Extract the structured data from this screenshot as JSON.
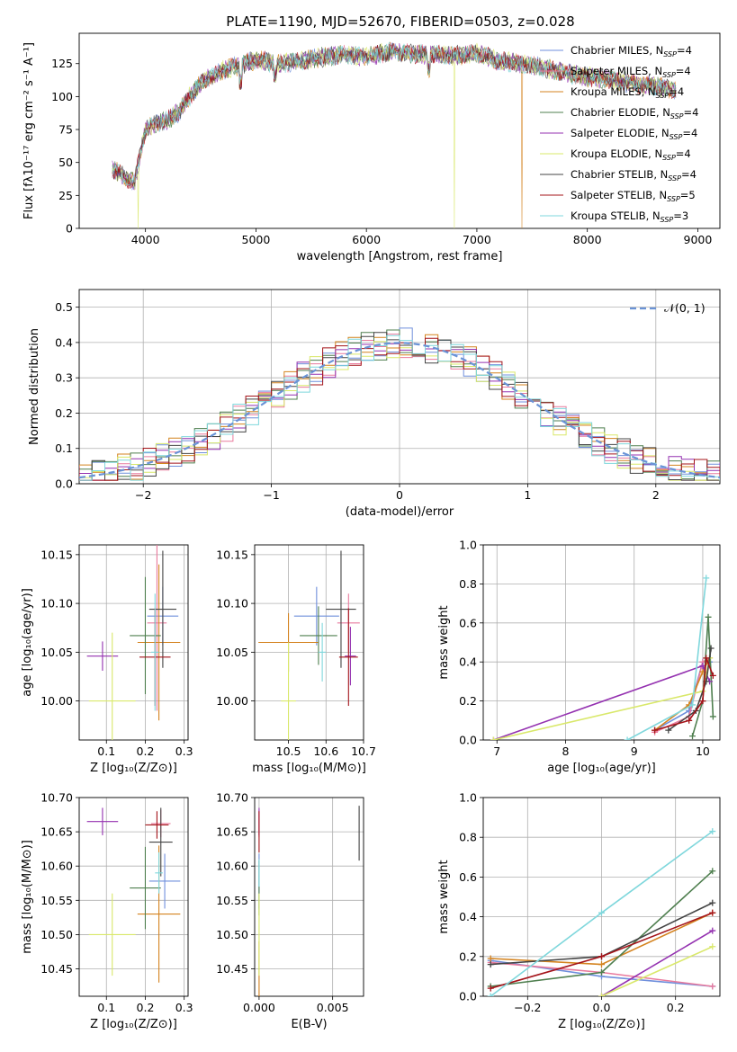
{
  "legend_series": [
    {
      "name": "Chabrier MILES",
      "n": "4",
      "color": "#6f8fdc"
    },
    {
      "name": "Salpeter MILES",
      "n": "4",
      "color": "#e97a9d"
    },
    {
      "name": "Kroupa MILES",
      "n": "4",
      "color": "#d4831f"
    },
    {
      "name": "Chabrier ELODIE",
      "n": "4",
      "color": "#4f7f4f"
    },
    {
      "name": "Salpeter ELODIE",
      "n": "4",
      "color": "#9431b0"
    },
    {
      "name": "Kroupa ELODIE",
      "n": "4",
      "color": "#d9e86a"
    },
    {
      "name": "Chabrier STELIB",
      "n": "4",
      "color": "#444444"
    },
    {
      "name": "Salpeter STELIB",
      "n": "5",
      "color": "#a4141a"
    },
    {
      "name": "Kroupa STELIB",
      "n": "3",
      "color": "#7fd7dc"
    }
  ],
  "nssp_label": "N",
  "nssp_sub": "SSP",
  "chart_data": [
    {
      "id": "spectrum",
      "type": "line",
      "title": "PLATE=1190, MJD=52670, FIBERID=0503, z=0.028",
      "xlabel": "wavelength [Angstrom, rest frame]",
      "ylabel": "Flux [fλ10⁻¹⁷ erg cm⁻² s⁻¹ A⁻¹]",
      "xlim": [
        3400,
        9200
      ],
      "ylim": [
        0,
        148
      ],
      "xticks": [
        4000,
        5000,
        6000,
        7000,
        8000,
        9000
      ],
      "yticks": [
        0,
        25,
        50,
        75,
        100,
        125
      ],
      "spectrum_shape": {
        "x": [
          3700,
          3800,
          3900,
          3950,
          4000,
          4100,
          4200,
          4300,
          4400,
          4500,
          4700,
          4900,
          5000,
          5200,
          5400,
          5600,
          5800,
          6000,
          6200,
          6500,
          6800,
          7000,
          7200,
          7400,
          7600,
          7800,
          8000,
          8200,
          8400,
          8600,
          8800
        ],
        "y": [
          45,
          40,
          35,
          55,
          75,
          80,
          82,
          88,
          100,
          110,
          120,
          125,
          128,
          125,
          127,
          130,
          132,
          130,
          134,
          132,
          131,
          133,
          127,
          125,
          122,
          118,
          115,
          113,
          110,
          108,
          105
        ]
      },
      "absorption_dips": [
        {
          "x": 3935,
          "y": 0
        },
        {
          "x": 6795,
          "y": 0
        },
        {
          "x": 7410,
          "y": 0
        }
      ]
    },
    {
      "id": "residuals",
      "type": "bar",
      "xlabel": "(data-model)/error",
      "ylabel": "Normed distribution",
      "xlim": [
        -2.5,
        2.5
      ],
      "ylim": [
        0,
        0.55
      ],
      "xticks": [
        -2,
        -1,
        0,
        1,
        2
      ],
      "yticks": [
        0.0,
        0.1,
        0.2,
        0.3,
        0.4,
        0.5
      ],
      "legend": "𝒩(0, 1)",
      "gaussian": {
        "mean": 0,
        "sigma": 1
      },
      "bin_width": 0.1
    },
    {
      "id": "age-vs-Z",
      "type": "scatter",
      "xlabel": "Z [log₁₀(Z/Z⊙)]",
      "ylabel": "age  [log₁₀(age/yr)]",
      "xlim": [
        0.03,
        0.31
      ],
      "ylim": [
        9.96,
        10.16
      ],
      "xticks": [
        0.1,
        0.2,
        0.3
      ],
      "yticks": [
        10.0,
        10.05,
        10.1,
        10.15
      ],
      "points": [
        {
          "x": 0.245,
          "y": 10.087,
          "xerr": 0.04,
          "yerr": 0.03,
          "series": 0
        },
        {
          "x": 0.23,
          "y": 10.08,
          "xerr": 0.025,
          "yerr": 0.09,
          "series": 1
        },
        {
          "x": 0.235,
          "y": 10.06,
          "xerr": 0.055,
          "yerr": 0.08,
          "series": 2
        },
        {
          "x": 0.2,
          "y": 10.067,
          "xerr": 0.04,
          "yerr": 0.06,
          "series": 3
        },
        {
          "x": 0.09,
          "y": 10.046,
          "xerr": 0.04,
          "yerr": 0.015,
          "series": 4
        },
        {
          "x": 0.115,
          "y": 10.0,
          "xerr": 0.06,
          "yerr": 0.07,
          "series": 5
        },
        {
          "x": 0.245,
          "y": 10.094,
          "xerr": 0.035,
          "yerr": 0.06,
          "series": 6
        },
        {
          "x": 0.225,
          "y": 10.045,
          "xerr": 0.04,
          "yerr": 0.05,
          "series": 7
        },
        {
          "x": 0.225,
          "y": 10.05,
          "xerr": 0.01,
          "yerr": 0.06,
          "series": 8
        }
      ]
    },
    {
      "id": "age-vs-mass",
      "type": "scatter",
      "xlabel": "mass [log₁₀(M/M⊙)]",
      "xlim": [
        10.41,
        10.7
      ],
      "ylim": [
        9.96,
        10.16
      ],
      "xticks": [
        10.5,
        10.6,
        10.7
      ],
      "yticks": [
        10.0,
        10.05,
        10.1,
        10.15
      ],
      "points": [
        {
          "x": 10.575,
          "y": 10.087,
          "xerr": 0.06,
          "yerr": 0.03,
          "series": 0
        },
        {
          "x": 10.66,
          "y": 10.08,
          "xerr": 0.03,
          "yerr": 0.03,
          "series": 1
        },
        {
          "x": 10.5,
          "y": 10.06,
          "xerr": 0.08,
          "yerr": 0.03,
          "series": 2
        },
        {
          "x": 10.58,
          "y": 10.067,
          "xerr": 0.05,
          "yerr": 0.03,
          "series": 3
        },
        {
          "x": 10.665,
          "y": 10.046,
          "xerr": 0.015,
          "yerr": 0.03,
          "series": 4
        },
        {
          "x": 10.5,
          "y": 10.0,
          "xerr": 0.02,
          "yerr": 0.06,
          "series": 5
        },
        {
          "x": 10.64,
          "y": 10.094,
          "xerr": 0.04,
          "yerr": 0.06,
          "series": 6
        },
        {
          "x": 10.66,
          "y": 10.045,
          "xerr": 0.025,
          "yerr": 0.05,
          "series": 7
        },
        {
          "x": 10.59,
          "y": 10.05,
          "xerr": 0.01,
          "yerr": 0.03,
          "series": 8
        }
      ]
    },
    {
      "id": "mass-weight-vs-age",
      "type": "line",
      "xlabel": "age  [log₁₀(age/yr)]",
      "ylabel": "mass weight",
      "xlim": [
        6.8,
        10.25
      ],
      "ylim": [
        0,
        1.0
      ],
      "xticks": [
        7,
        8,
        9,
        10
      ],
      "yticks": [
        0.0,
        0.2,
        0.4,
        0.6,
        0.8,
        1.0
      ],
      "series": [
        {
          "series": 0,
          "x": [
            9.3,
            9.8,
            10.0,
            10.1
          ],
          "y": [
            0.05,
            0.15,
            0.4,
            0.4
          ]
        },
        {
          "series": 1,
          "x": [
            9.3,
            9.8,
            10.0,
            10.1
          ],
          "y": [
            0.04,
            0.12,
            0.4,
            0.42
          ]
        },
        {
          "series": 2,
          "x": [
            9.3,
            9.8,
            10.0,
            10.1
          ],
          "y": [
            0.05,
            0.18,
            0.35,
            0.42
          ]
        },
        {
          "series": 3,
          "x": [
            9.85,
            10.0,
            10.08,
            10.15
          ],
          "y": [
            0.02,
            0.2,
            0.63,
            0.12
          ]
        },
        {
          "series": 4,
          "x": [
            6.95,
            10.0,
            10.1
          ],
          "y": [
            0.0,
            0.38,
            0.3
          ]
        },
        {
          "series": 5,
          "x": [
            6.95,
            10.0,
            10.1
          ],
          "y": [
            0.0,
            0.25,
            0.42
          ]
        },
        {
          "series": 6,
          "x": [
            9.5,
            9.9,
            10.05,
            10.12
          ],
          "y": [
            0.05,
            0.15,
            0.3,
            0.47
          ]
        },
        {
          "series": 7,
          "x": [
            9.3,
            9.8,
            10.0,
            10.05,
            10.15
          ],
          "y": [
            0.05,
            0.1,
            0.2,
            0.42,
            0.33
          ]
        },
        {
          "series": 8,
          "x": [
            8.9,
            9.85,
            10.05
          ],
          "y": [
            0.0,
            0.18,
            0.83
          ]
        }
      ]
    },
    {
      "id": "mass-vs-Z",
      "type": "scatter",
      "xlabel": "Z [log₁₀(Z/Z⊙)]",
      "ylabel": "mass [log₁₀(M/M⊙)]",
      "xlim": [
        0.03,
        0.31
      ],
      "ylim": [
        10.41,
        10.7
      ],
      "xticks": [
        0.1,
        0.2,
        0.3
      ],
      "yticks": [
        10.45,
        10.5,
        10.55,
        10.6,
        10.65,
        10.7
      ],
      "points": [
        {
          "x": 0.25,
          "y": 10.578,
          "xerr": 0.04,
          "yerr": 0.04,
          "series": 0
        },
        {
          "x": 0.24,
          "y": 10.662,
          "xerr": 0.025,
          "yerr": 0.02,
          "series": 1
        },
        {
          "x": 0.235,
          "y": 10.53,
          "xerr": 0.055,
          "yerr": 0.1,
          "series": 2
        },
        {
          "x": 0.2,
          "y": 10.568,
          "xerr": 0.04,
          "yerr": 0.06,
          "series": 3
        },
        {
          "x": 0.09,
          "y": 10.665,
          "xerr": 0.04,
          "yerr": 0.02,
          "series": 4
        },
        {
          "x": 0.115,
          "y": 10.5,
          "xerr": 0.06,
          "yerr": 0.06,
          "series": 5
        },
        {
          "x": 0.24,
          "y": 10.635,
          "xerr": 0.03,
          "yerr": 0.05,
          "series": 6
        },
        {
          "x": 0.23,
          "y": 10.66,
          "xerr": 0.03,
          "yerr": 0.02,
          "series": 7
        },
        {
          "x": 0.235,
          "y": 10.59,
          "xerr": 0.01,
          "yerr": 0.03,
          "series": 8
        }
      ]
    },
    {
      "id": "mass-vs-EBV",
      "type": "scatter",
      "xlabel": "E(B-V)",
      "xlim": [
        -0.0003,
        0.0071
      ],
      "ylim": [
        10.41,
        10.7
      ],
      "xticks": [
        0.0,
        0.005
      ],
      "xtick_labels": [
        "0.000",
        "0.005"
      ],
      "yticks": [
        10.45,
        10.5,
        10.55,
        10.6,
        10.65,
        10.7
      ],
      "points": [
        {
          "x": 0.0,
          "y": 10.578,
          "xerr": 0,
          "yerr": 0.04,
          "series": 0
        },
        {
          "x": 0.0,
          "y": 10.662,
          "xerr": 0,
          "yerr": 0.02,
          "series": 1
        },
        {
          "x": 0.0,
          "y": 10.45,
          "xerr": 0,
          "yerr": 0.04,
          "series": 2
        },
        {
          "x": 0.0,
          "y": 10.568,
          "xerr": 0,
          "yerr": 0.04,
          "series": 3
        },
        {
          "x": 0.0,
          "y": 10.665,
          "xerr": 0,
          "yerr": 0.02,
          "series": 4
        },
        {
          "x": 0.0,
          "y": 10.5,
          "xerr": 0,
          "yerr": 0.06,
          "series": 5
        },
        {
          "x": 0.0068,
          "y": 10.648,
          "xerr": 0,
          "yerr": 0.04,
          "series": 6
        },
        {
          "x": 0.0,
          "y": 10.65,
          "xerr": 0,
          "yerr": 0.03,
          "series": 7
        },
        {
          "x": 0.0,
          "y": 10.59,
          "xerr": 0,
          "yerr": 0.02,
          "series": 8
        }
      ]
    },
    {
      "id": "mass-weight-vs-Z",
      "type": "line",
      "xlabel": "Z [log₁₀(Z/Z⊙)]",
      "ylabel": "mass weight",
      "xlim": [
        -0.32,
        0.32
      ],
      "ylim": [
        0,
        1.0
      ],
      "xticks": [
        -0.2,
        0.0,
        0.2
      ],
      "xtick_labels": [
        "−0.2",
        "0.0",
        "0.2"
      ],
      "yticks": [
        0.0,
        0.2,
        0.4,
        0.6,
        0.8,
        1.0
      ],
      "series": [
        {
          "series": 0,
          "x": [
            -0.3,
            0.0,
            0.3
          ],
          "y": [
            0.18,
            0.1,
            0.05
          ]
        },
        {
          "series": 1,
          "x": [
            -0.3,
            0.0,
            0.3
          ],
          "y": [
            0.17,
            0.12,
            0.05
          ]
        },
        {
          "series": 2,
          "x": [
            -0.3,
            0.0,
            0.3
          ],
          "y": [
            0.19,
            0.16,
            0.42
          ]
        },
        {
          "series": 3,
          "x": [
            -0.3,
            0.0,
            0.3
          ],
          "y": [
            0.05,
            0.12,
            0.63
          ]
        },
        {
          "series": 4,
          "x": [
            0.0,
            0.3
          ],
          "y": [
            0.0,
            0.33
          ]
        },
        {
          "series": 5,
          "x": [
            0.0,
            0.3
          ],
          "y": [
            0.0,
            0.25
          ]
        },
        {
          "series": 6,
          "x": [
            -0.3,
            0.0,
            0.3
          ],
          "y": [
            0.16,
            0.2,
            0.47
          ]
        },
        {
          "series": 7,
          "x": [
            -0.3,
            0.0,
            0.3
          ],
          "y": [
            0.04,
            0.2,
            0.42
          ]
        },
        {
          "series": 8,
          "x": [
            -0.3,
            0.0,
            0.3
          ],
          "y": [
            0.0,
            0.42,
            0.83
          ]
        }
      ]
    }
  ]
}
